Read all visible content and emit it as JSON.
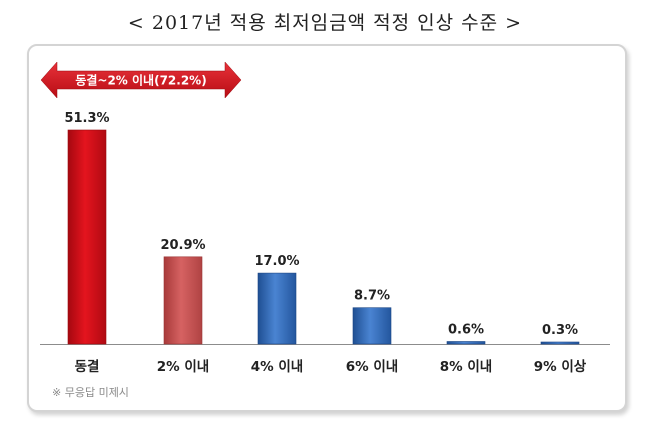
{
  "title": "< 2017년 적용 최저임금액 적정 인상 수준 >",
  "annotation": "동결~2% 이내(72.2%)",
  "note": "※ 무응답 미제시",
  "colors": {
    "red": "#d2101a",
    "pink": "#c95252",
    "blue": "#2f67b4"
  },
  "chart_data": {
    "type": "bar",
    "title": "< 2017년 적용 최저임금액 적정 인상 수준 >",
    "categories": [
      "동결",
      "2% 이내",
      "4% 이내",
      "6% 이내",
      "8% 이내",
      "9% 이상"
    ],
    "values": [
      51.3,
      20.9,
      17.0,
      8.7,
      0.6,
      0.3
    ],
    "data_labels": [
      "51.3%",
      "20.9%",
      "17.0%",
      "8.7%",
      "0.6%",
      "0.3%"
    ],
    "bar_colors": [
      "red",
      "pink",
      "blue",
      "blue",
      "blue",
      "blue"
    ],
    "ylim": [
      0,
      51.3
    ],
    "grid": false,
    "legend": "none"
  }
}
